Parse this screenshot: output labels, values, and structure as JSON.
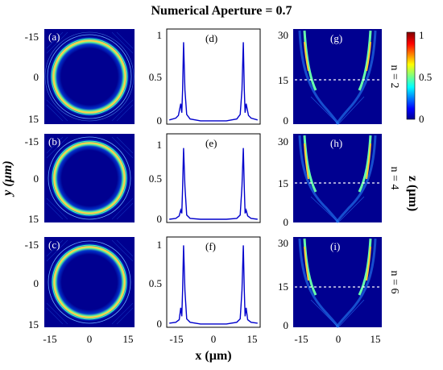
{
  "title": "Numerical Aperture = 0.7",
  "panel_labels": [
    "(a)",
    "(b)",
    "(c)",
    "(d)",
    "(e)",
    "(f)",
    "(g)",
    "(h)",
    "(i)"
  ],
  "row_labels": [
    "n = 2",
    "n = 4",
    "n = 6"
  ],
  "axis_labels": {
    "x": "x (µm)",
    "y": "y (µm)",
    "z": "z (µm)"
  },
  "ticks": {
    "xy_x": [
      "-15",
      "0",
      "15"
    ],
    "xy_y": [
      "-15",
      "0",
      "15"
    ],
    "profile_y": [
      "1",
      "0.5",
      "0"
    ],
    "profile_x": [
      "-15",
      "0",
      "15"
    ],
    "z_y": [
      "30",
      "15",
      "0"
    ],
    "z_x": [
      "-15",
      "0",
      "15"
    ]
  },
  "colorbar": {
    "ticks": [
      "1",
      "0.5",
      "0"
    ]
  },
  "colors": {
    "jet_low": "#00008f",
    "jet_high": "#800000",
    "profile_line": "#0000cc",
    "dashed_line": "#ffffff"
  },
  "chart_data": [
    {
      "type": "line",
      "panel": "(d)",
      "row": "n = 2",
      "xlim": [
        -18,
        18
      ],
      "ylim": [
        0,
        1
      ],
      "x": [
        -17,
        -14.5,
        -13.5,
        -12.6,
        -12.2,
        -11.9,
        -11.5,
        -11.0,
        -10.3,
        -9,
        -5,
        0,
        5,
        9,
        10.3,
        11.0,
        11.5,
        11.9,
        12.2,
        12.6,
        13.5,
        14.5,
        17
      ],
      "values": [
        0.02,
        0.04,
        0.07,
        0.2,
        0.1,
        0.35,
        0.88,
        0.35,
        0.08,
        0.03,
        0.01,
        0.01,
        0.01,
        0.03,
        0.08,
        0.35,
        0.88,
        0.35,
        0.1,
        0.2,
        0.07,
        0.04,
        0.02
      ]
    },
    {
      "type": "line",
      "panel": "(e)",
      "row": "n = 4",
      "xlim": [
        -18,
        18
      ],
      "ylim": [
        0,
        1
      ],
      "x": [
        -17,
        -14.5,
        -13.2,
        -12.6,
        -12.2,
        -11.9,
        -11.5,
        -11.0,
        -10.3,
        -9,
        -5,
        0,
        5,
        9,
        10.3,
        11.0,
        11.5,
        11.9,
        12.2,
        12.6,
        13.2,
        14.5,
        17
      ],
      "values": [
        0.01,
        0.02,
        0.05,
        0.12,
        0.08,
        0.38,
        0.86,
        0.4,
        0.06,
        0.02,
        0.01,
        0.01,
        0.01,
        0.02,
        0.06,
        0.4,
        0.86,
        0.38,
        0.08,
        0.12,
        0.05,
        0.02,
        0.01
      ]
    },
    {
      "type": "line",
      "panel": "(f)",
      "row": "n = 6",
      "xlim": [
        -18,
        18
      ],
      "ylim": [
        0,
        1
      ],
      "x": [
        -17,
        -14.5,
        -13.2,
        -12.6,
        -12.2,
        -11.9,
        -11.5,
        -11.0,
        -10.3,
        -9,
        -5,
        0,
        5,
        9,
        10.3,
        11.0,
        11.5,
        11.9,
        12.2,
        12.6,
        13.2,
        14.5,
        17
      ],
      "values": [
        0.02,
        0.03,
        0.06,
        0.2,
        0.1,
        0.4,
        0.93,
        0.4,
        0.07,
        0.03,
        0.01,
        0.01,
        0.01,
        0.03,
        0.07,
        0.4,
        0.93,
        0.4,
        0.1,
        0.2,
        0.06,
        0.03,
        0.02
      ]
    }
  ]
}
